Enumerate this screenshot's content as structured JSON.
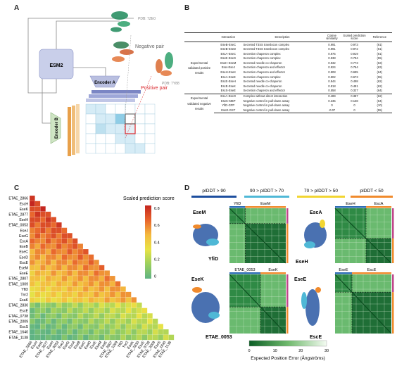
{
  "panelA": {
    "letter": "A",
    "esm_label": "ESM2",
    "encoderA_label": "Encoder A",
    "encoderB_label": "Encoder B",
    "pdb_top": "PDB: 7ZE0",
    "pdb_bottom": "PDB: 7Y88",
    "negative_label": "Negative pair",
    "positive_label": "Positive pair",
    "colors": {
      "negative": "#666666",
      "positive": "#d9262b",
      "encoderA": "#b9bfe0",
      "encoderB": "#cfe5c4",
      "esm": "#c9cfea"
    }
  },
  "panelB": {
    "letter": "B",
    "headers": [
      "Interaction",
      "Description",
      "Cosine similarity",
      "Scaled prediction score",
      "Reference"
    ],
    "group_pos": "Experimental validated positive results",
    "group_neg": "Experimental validated negative results",
    "rows_pos": [
      [
        "EseB-EseC",
        "Secreted T3SS translocon complex",
        "0.991",
        "0.973",
        "(61)"
      ],
      [
        "EseB-EseD",
        "Secreted T3SS translocon complex",
        "0.991",
        "0.972",
        "(61)"
      ],
      [
        "EscA-EseC",
        "Secretion chaperon complex",
        "0.975",
        "0.919",
        "(61)"
      ],
      [
        "EseE-EseG",
        "Secretion chaperon complex",
        "0.938",
        "0.794",
        "(55)"
      ],
      [
        "EseH-EseM",
        "Secreted needle co-chaperon",
        "0.932",
        "0.773",
        "(63)"
      ],
      [
        "EseI-EseJ",
        "Secretion chaperon and effector",
        "0.924",
        "0.764",
        "(63)"
      ],
      [
        "EseH-EseK",
        "Secretion chaperon and effector",
        "0.908",
        "0.695",
        "(64)"
      ],
      [
        "EscA-EseE",
        "Secretion chaperon complex",
        "0.902",
        "0.673",
        "(55)"
      ],
      [
        "EscE-EseH",
        "Secreted needle co-chaperon",
        "0.844",
        "0.498",
        "(62)"
      ],
      [
        "EscE-EseK",
        "Secreted needle co-chaperon",
        "0.818",
        "0.481",
        "(62)"
      ],
      [
        "EscS-EseE",
        "Secretion chaperon and effector",
        "0.558",
        "0.327",
        "(64)"
      ]
    ],
    "rows_neg": [
      [
        "EscA-EseO",
        "Complex without direct interaction",
        "0.489",
        "0.387",
        "(62)"
      ],
      [
        "EseK-MBP",
        "Negative control in pull-down assay",
        "0.235",
        "0.138",
        "(64)"
      ],
      [
        "YfiD-GFP",
        "Negative control in pull-down assay",
        "0",
        "0",
        "(10)"
      ],
      [
        "EseE-GST",
        "Negative control in pull-down assay",
        "-0.07",
        "0",
        "(55)"
      ]
    ]
  },
  "panelC": {
    "letter": "C",
    "legend_title": "Scaled prediction score",
    "legend_ticks": [
      "0.8",
      "0.6",
      "0.4",
      "0.2",
      "0"
    ],
    "labels": [
      "ETAE_2866",
      "EscH",
      "EseK",
      "ETAE_2877",
      "EseH",
      "ETAE_0053",
      "EseJ",
      "EseG",
      "EscA",
      "EseB",
      "EseC",
      "EseD",
      "EscE",
      "EseM",
      "EseE",
      "ETAE_2807",
      "ETAE_1009",
      "YfiD",
      "Tnr2",
      "EsaK",
      "ETAE_2830",
      "EscE",
      "ETAE_0738",
      "ETAE_2009",
      "EscS",
      "ETAE_1640",
      "ETAE_1138"
    ],
    "color_stops": [
      "#5fb383",
      "#9bd05e",
      "#e9e345",
      "#f4b93e",
      "#e8642c",
      "#c4261f"
    ]
  },
  "panelD": {
    "letter": "D",
    "plddt_labels": [
      "pIDDT > 90",
      "90 > pIDDT > 70",
      "70 > pIDDT > 50",
      "pIDDT < 50"
    ],
    "plddt_colors": [
      "#1d4e9e",
      "#4fb8d6",
      "#f2d531",
      "#f08a2c"
    ],
    "tl": {
      "protein_top": "EseM",
      "protein_bottom": "YfiD",
      "header_a": "YfiD",
      "header_b": "EseM"
    },
    "tr": {
      "protein_top": "EscA",
      "protein_bottom": "EseH",
      "header_a": "EseH",
      "header_b": "EscA"
    },
    "bl": {
      "protein_top": "EseK",
      "protein_bottom": "ETAE_0053",
      "header_a": "ETAE_0053",
      "header_b": "EseK"
    },
    "br": {
      "protein_top": "EseE",
      "protein_bottom": "EscE",
      "header_a": "EseE",
      "header_b": "EscE"
    },
    "pae_label": "Expected Position Error (Ångströms)",
    "pae_ticks": [
      "0",
      "10",
      "20",
      "30"
    ]
  }
}
